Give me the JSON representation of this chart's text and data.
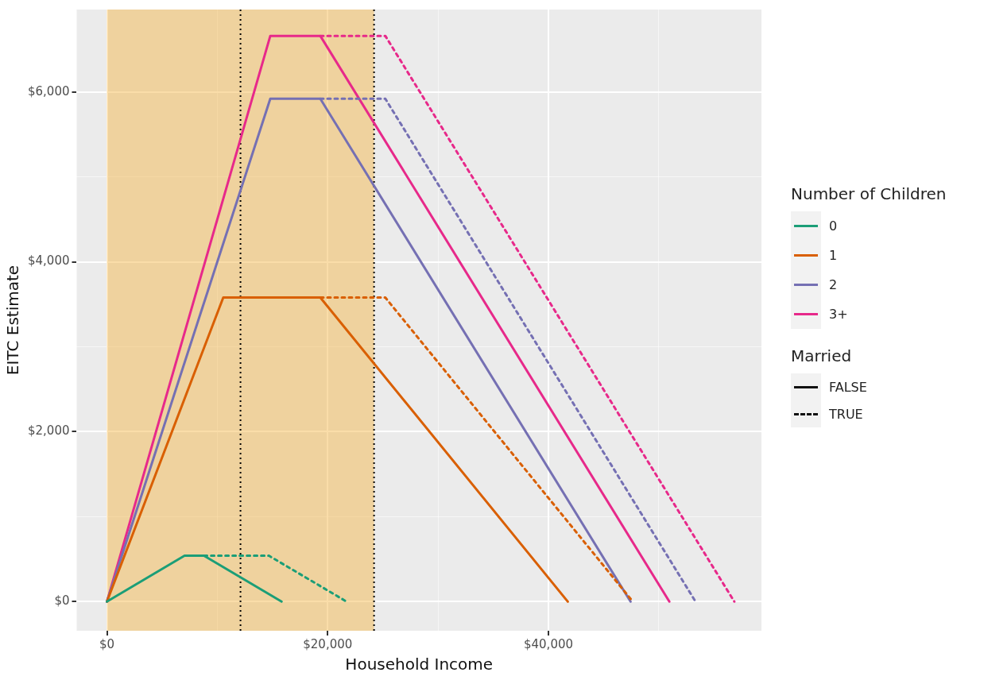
{
  "chart_data": {
    "type": "line",
    "xlabel": "Household Income",
    "ylabel": "EITC Estimate",
    "legend_title": "Number of Children",
    "legend": "right",
    "grid": true,
    "marker": "none",
    "xlim": [
      -2741,
      59300
    ],
    "ylim": [
      -343,
      6970
    ],
    "xticks": [
      {
        "value": 0,
        "label": "$0"
      },
      {
        "value": 10000,
        "label": null
      },
      {
        "value": 20000,
        "label": "$20,000"
      },
      {
        "value": 30000,
        "label": null
      },
      {
        "value": 40000,
        "label": "$40,000"
      },
      {
        "value": 50000,
        "label": null
      }
    ],
    "yticks": [
      {
        "value": 0,
        "label": "$0"
      },
      {
        "value": 1000,
        "label": null
      },
      {
        "value": 2000,
        "label": "$2,000"
      },
      {
        "value": 3000,
        "label": null
      },
      {
        "value": 4000,
        "label": "$4,000"
      },
      {
        "value": 5000,
        "label": null
      },
      {
        "value": 6000,
        "label": "$6,000"
      }
    ],
    "series": [
      {
        "name": "0",
        "color": "#1b9e77",
        "line_style": "solid",
        "x": [
          0,
          7030,
          8790,
          15820
        ],
        "values": [
          0,
          540,
          540,
          0
        ]
      },
      {
        "name": "1",
        "color": "#d95f02",
        "line_style": "solid",
        "x": [
          0,
          10540,
          19330,
          41756
        ],
        "values": [
          0,
          3580,
          3580,
          0
        ]
      },
      {
        "name": "2",
        "color": "#7570b3",
        "line_style": "solid",
        "x": [
          0,
          14800,
          19330,
          47440
        ],
        "values": [
          0,
          5920,
          5920,
          0
        ]
      },
      {
        "name": "3+",
        "color": "#e7298a",
        "line_style": "solid",
        "x": [
          0,
          14800,
          19330,
          50954
        ],
        "values": [
          0,
          6660,
          6660,
          0
        ]
      },
      {
        "color": "#1b9e77",
        "line_style": "dashed",
        "x": [
          8790,
          14680,
          21710
        ],
        "values": [
          540,
          540,
          0
        ]
      },
      {
        "color": "#d95f02",
        "line_style": "dashed",
        "x": [
          19330,
          25220,
          47646
        ],
        "values": [
          3580,
          3580,
          0
        ]
      },
      {
        "color": "#7570b3",
        "line_style": "dashed",
        "x": [
          19330,
          25220,
          53330
        ],
        "values": [
          5920,
          5920,
          0
        ]
      },
      {
        "color": "#e7298a",
        "line_style": "dashed",
        "x": [
          19330,
          25220,
          56844
        ],
        "values": [
          6660,
          6660,
          0
        ]
      }
    ],
    "bands": [
      {
        "axis": "x",
        "from": 0,
        "to": 24200,
        "color": "#f5b441"
      }
    ],
    "ref_lines": [
      {
        "axis": "x",
        "value": 12100,
        "color": "#000000",
        "line_style": "dotted"
      },
      {
        "axis": "x",
        "value": 24200,
        "color": "#000000",
        "line_style": "dotted"
      }
    ],
    "annotations": [
      "Married",
      "FALSE",
      "TRUE"
    ]
  }
}
